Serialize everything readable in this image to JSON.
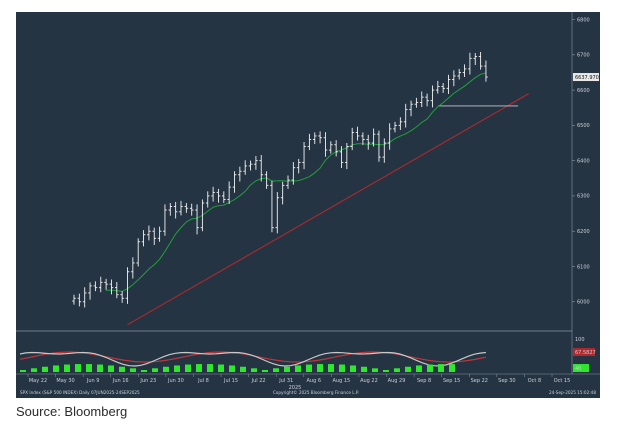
{
  "chart_data": {
    "type": "ohlc",
    "price_axis": {
      "ylim": [
        5920,
        6810
      ],
      "ticks": [
        6000,
        6100,
        6200,
        6300,
        6400,
        6500,
        6600,
        6700,
        6800
      ],
      "tick_labels": [
        "6000",
        "6100",
        "6200",
        "6300",
        "6400",
        "6500",
        "6600",
        "6700",
        "6800"
      ]
    },
    "last_price_label": "6637.9702",
    "oscillator": {
      "tick_labels": [
        "100",
        "67.5827",
        "40"
      ],
      "colors": {
        "fast": "#c8c8c8",
        "slow": "#c0363b",
        "hist": "#2ee82e"
      }
    },
    "x_tick_labels": [
      "May 22",
      "May 30",
      "Jun 9",
      "Jun 16",
      "Jun 23",
      "Jun 30",
      "Jul 8",
      "Jul 15",
      "Jul 22",
      "Jul 31",
      "Aug 6",
      "Aug 15",
      "Aug 22",
      "Aug 29",
      "Sep 8",
      "Sep 15",
      "Sep 22",
      "Sep 30",
      "Oct 8",
      "Oct 15"
    ],
    "x_center_label": "2025",
    "footer": {
      "left": "SPX Index (S&P 500 INDEX) Daily 07JUN2025-24SEP2025",
      "center": "Copyright© 2025 Bloomberg Finance L.P.",
      "right": "24-Sep-2025 15:02:48"
    },
    "colors": {
      "background": "#253442",
      "bars": "#f2f2f2",
      "moving_average": "#1fa03c",
      "trendline": "#b0282e",
      "support": "#c0c6cc",
      "last_price_bg": "#e9e9e9",
      "osc_label_bg": "#b0282e"
    },
    "series": [
      {
        "name": "",
        "values": [
          6010,
          6000,
          6025,
          6045,
          6040,
          6055,
          6050,
          6040,
          6020,
          6010,
          6085,
          6110,
          6170,
          6190,
          6200,
          6180,
          6200,
          6260,
          6270,
          6255,
          6270,
          6265,
          6260,
          6210,
          6280,
          6300,
          6310,
          6300,
          6290,
          6325,
          6360,
          6370,
          6385,
          6390,
          6400,
          6360,
          6330,
          6210,
          6295,
          6330,
          6345,
          6380,
          6395,
          6440,
          6460,
          6470,
          6465,
          6430,
          6445,
          6425,
          6395,
          6440,
          6480,
          6470,
          6460,
          6450,
          6475,
          6410,
          6450,
          6490,
          6500,
          6510,
          6545,
          6560,
          6565,
          6580,
          6570,
          6600,
          6610,
          6605,
          6630,
          6640,
          6650,
          6660,
          6690,
          6695,
          6668,
          6637
        ]
      }
    ]
  },
  "source": "Source: Bloomberg"
}
